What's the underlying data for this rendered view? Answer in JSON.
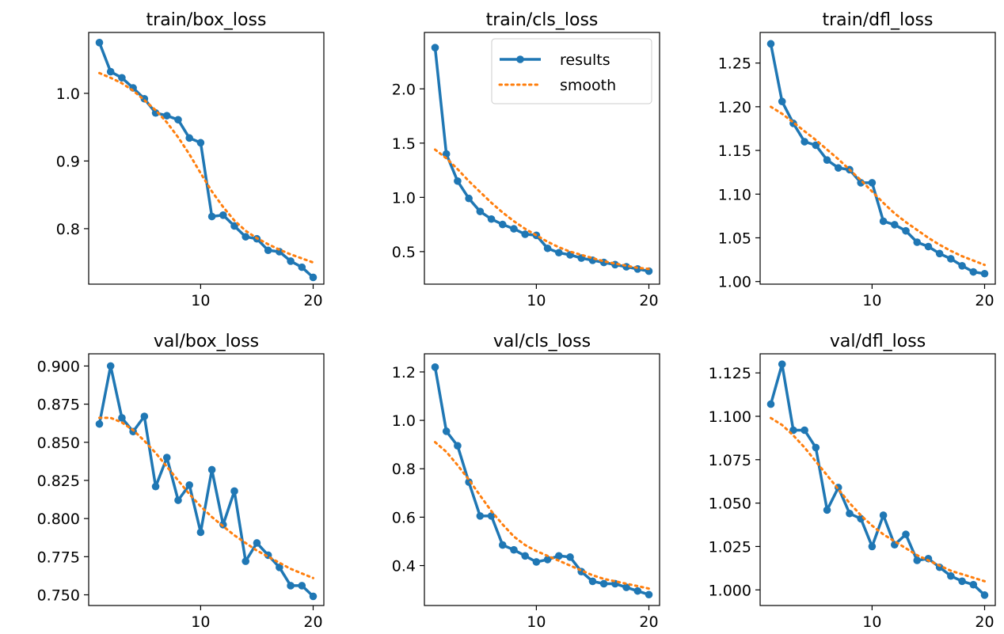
{
  "colors": {
    "results": "#1f77b4",
    "smooth": "#ff7f0e"
  },
  "legend": {
    "placement": "top-right",
    "panel": 1,
    "entries": [
      "results",
      "smooth"
    ]
  },
  "chart_data": [
    {
      "type": "line",
      "title": "train/box_loss",
      "x": [
        1,
        2,
        3,
        4,
        5,
        6,
        7,
        8,
        9,
        10,
        11,
        12,
        13,
        14,
        15,
        16,
        17,
        18,
        19,
        20
      ],
      "xticks": [
        10,
        20
      ],
      "xtick_labels": [
        "10",
        "20"
      ],
      "yticks": [
        0.8,
        0.9,
        1.0
      ],
      "ytick_labels": [
        "0.8",
        "0.9",
        "1.0"
      ],
      "xlim": [
        0.05,
        20.95
      ],
      "ylim": [
        0.718,
        1.09
      ],
      "series": [
        {
          "name": "results",
          "style": "line-marker",
          "values": [
            1.075,
            1.032,
            1.023,
            1.008,
            0.992,
            0.971,
            0.967,
            0.961,
            0.934,
            0.927,
            0.818,
            0.82,
            0.804,
            0.788,
            0.785,
            0.768,
            0.766,
            0.752,
            0.743,
            0.728
          ]
        },
        {
          "name": "smooth",
          "style": "dotted",
          "values": [
            1.03,
            1.023,
            1.015,
            1.004,
            0.99,
            0.975,
            0.957,
            0.935,
            0.91,
            0.882,
            0.855,
            0.832,
            0.812,
            0.797,
            0.786,
            0.777,
            0.769,
            0.762,
            0.756,
            0.75
          ]
        }
      ]
    },
    {
      "type": "line",
      "title": "train/cls_loss",
      "x": [
        1,
        2,
        3,
        4,
        5,
        6,
        7,
        8,
        9,
        10,
        11,
        12,
        13,
        14,
        15,
        16,
        17,
        18,
        19,
        20
      ],
      "xticks": [
        10,
        20
      ],
      "xtick_labels": [
        "10",
        "20"
      ],
      "yticks": [
        0.5,
        1.0,
        1.5,
        2.0
      ],
      "ytick_labels": [
        "0.5",
        "1.0",
        "1.5",
        "2.0"
      ],
      "xlim": [
        0.05,
        20.95
      ],
      "ylim": [
        0.2,
        2.52
      ],
      "series": [
        {
          "name": "results",
          "style": "line-marker",
          "values": [
            2.38,
            1.4,
            1.15,
            0.99,
            0.87,
            0.8,
            0.75,
            0.71,
            0.66,
            0.65,
            0.53,
            0.49,
            0.47,
            0.44,
            0.42,
            0.4,
            0.38,
            0.36,
            0.34,
            0.32
          ]
        },
        {
          "name": "smooth",
          "style": "dotted",
          "values": [
            1.44,
            1.36,
            1.26,
            1.15,
            1.05,
            0.95,
            0.86,
            0.78,
            0.71,
            0.65,
            0.59,
            0.54,
            0.5,
            0.47,
            0.44,
            0.41,
            0.39,
            0.37,
            0.35,
            0.34
          ]
        }
      ]
    },
    {
      "type": "line",
      "title": "train/dfl_loss",
      "x": [
        1,
        2,
        3,
        4,
        5,
        6,
        7,
        8,
        9,
        10,
        11,
        12,
        13,
        14,
        15,
        16,
        17,
        18,
        19,
        20
      ],
      "xticks": [
        10,
        20
      ],
      "xtick_labels": [
        "10",
        "20"
      ],
      "yticks": [
        1.0,
        1.05,
        1.1,
        1.15,
        1.2,
        1.25
      ],
      "ytick_labels": [
        "1.00",
        "1.05",
        "1.10",
        "1.15",
        "1.20",
        "1.25"
      ],
      "xlim": [
        0.05,
        20.95
      ],
      "ylim": [
        0.997,
        1.285
      ],
      "series": [
        {
          "name": "results",
          "style": "line-marker",
          "values": [
            1.272,
            1.206,
            1.181,
            1.16,
            1.156,
            1.139,
            1.13,
            1.128,
            1.113,
            1.113,
            1.069,
            1.065,
            1.058,
            1.045,
            1.04,
            1.032,
            1.026,
            1.018,
            1.011,
            1.009
          ]
        },
        {
          "name": "smooth",
          "style": "dotted",
          "values": [
            1.2,
            1.192,
            1.182,
            1.172,
            1.162,
            1.151,
            1.14,
            1.128,
            1.116,
            1.103,
            1.09,
            1.078,
            1.068,
            1.059,
            1.05,
            1.042,
            1.035,
            1.029,
            1.024,
            1.019
          ]
        }
      ]
    },
    {
      "type": "line",
      "title": "val/box_loss",
      "x": [
        1,
        2,
        3,
        4,
        5,
        6,
        7,
        8,
        9,
        10,
        11,
        12,
        13,
        14,
        15,
        16,
        17,
        18,
        19,
        20
      ],
      "xticks": [
        10,
        20
      ],
      "xtick_labels": [
        "10",
        "20"
      ],
      "yticks": [
        0.75,
        0.775,
        0.8,
        0.825,
        0.85,
        0.875,
        0.9
      ],
      "ytick_labels": [
        "0.750",
        "0.775",
        "0.800",
        "0.825",
        "0.850",
        "0.875",
        "0.900"
      ],
      "xlim": [
        0.05,
        20.95
      ],
      "ylim": [
        0.743,
        0.908
      ],
      "series": [
        {
          "name": "results",
          "style": "line-marker",
          "values": [
            0.862,
            0.9,
            0.866,
            0.857,
            0.867,
            0.821,
            0.84,
            0.812,
            0.822,
            0.791,
            0.832,
            0.796,
            0.818,
            0.772,
            0.784,
            0.776,
            0.768,
            0.756,
            0.756,
            0.749
          ]
        },
        {
          "name": "smooth",
          "style": "dotted",
          "values": [
            0.866,
            0.866,
            0.863,
            0.858,
            0.851,
            0.843,
            0.834,
            0.825,
            0.816,
            0.808,
            0.801,
            0.795,
            0.789,
            0.784,
            0.779,
            0.775,
            0.771,
            0.767,
            0.764,
            0.761
          ]
        }
      ]
    },
    {
      "type": "line",
      "title": "val/cls_loss",
      "x": [
        1,
        2,
        3,
        4,
        5,
        6,
        7,
        8,
        9,
        10,
        11,
        12,
        13,
        14,
        15,
        16,
        17,
        18,
        19,
        20
      ],
      "xticks": [
        10,
        20
      ],
      "xtick_labels": [
        "10",
        "20"
      ],
      "yticks": [
        0.4,
        0.6,
        0.8,
        1.0,
        1.2
      ],
      "ytick_labels": [
        "0.4",
        "0.6",
        "0.8",
        "1.0",
        "1.2"
      ],
      "xlim": [
        0.05,
        20.95
      ],
      "ylim": [
        0.235,
        1.275
      ],
      "series": [
        {
          "name": "results",
          "style": "line-marker",
          "values": [
            1.22,
            0.955,
            0.895,
            0.745,
            0.605,
            0.605,
            0.485,
            0.465,
            0.44,
            0.415,
            0.425,
            0.44,
            0.435,
            0.375,
            0.335,
            0.325,
            0.325,
            0.31,
            0.295,
            0.28
          ]
        },
        {
          "name": "smooth",
          "style": "dotted",
          "values": [
            0.91,
            0.87,
            0.815,
            0.755,
            0.69,
            0.625,
            0.57,
            0.52,
            0.485,
            0.46,
            0.44,
            0.42,
            0.4,
            0.38,
            0.36,
            0.345,
            0.335,
            0.325,
            0.315,
            0.305
          ]
        }
      ]
    },
    {
      "type": "line",
      "title": "val/dfl_loss",
      "x": [
        1,
        2,
        3,
        4,
        5,
        6,
        7,
        8,
        9,
        10,
        11,
        12,
        13,
        14,
        15,
        16,
        17,
        18,
        19,
        20
      ],
      "xticks": [
        10,
        20
      ],
      "xtick_labels": [
        "10",
        "20"
      ],
      "yticks": [
        1.0,
        1.025,
        1.05,
        1.075,
        1.1,
        1.125
      ],
      "ytick_labels": [
        "1.000",
        "1.025",
        "1.050",
        "1.075",
        "1.100",
        "1.125"
      ],
      "xlim": [
        0.05,
        20.95
      ],
      "ylim": [
        0.991,
        1.136
      ],
      "series": [
        {
          "name": "results",
          "style": "line-marker",
          "values": [
            1.107,
            1.13,
            1.092,
            1.092,
            1.082,
            1.046,
            1.059,
            1.044,
            1.041,
            1.025,
            1.043,
            1.026,
            1.032,
            1.017,
            1.018,
            1.013,
            1.008,
            1.005,
            1.003,
            0.997
          ]
        },
        {
          "name": "smooth",
          "style": "dotted",
          "values": [
            1.099,
            1.095,
            1.089,
            1.082,
            1.074,
            1.066,
            1.058,
            1.05,
            1.043,
            1.037,
            1.032,
            1.028,
            1.024,
            1.02,
            1.017,
            1.014,
            1.011,
            1.009,
            1.007,
            1.005
          ]
        }
      ]
    }
  ]
}
